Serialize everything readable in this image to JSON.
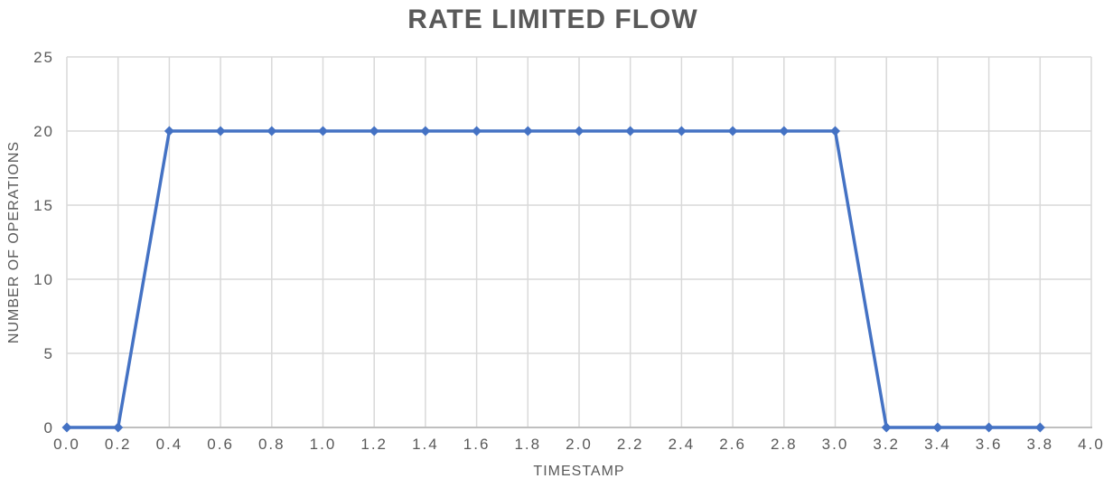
{
  "chart_data": {
    "type": "line",
    "title": "RATE LIMITED FLOW",
    "xlabel": "TIMESTAMP",
    "ylabel": "NUMBER OF OPERATIONS",
    "x": [
      0.0,
      0.2,
      0.4,
      0.6,
      0.8,
      1.0,
      1.2,
      1.4,
      1.6,
      1.8,
      2.0,
      2.2,
      2.4,
      2.6,
      2.8,
      3.0,
      3.2,
      3.4,
      3.6,
      3.8
    ],
    "series": [
      {
        "name": "operations",
        "values": [
          0,
          0,
          20,
          20,
          20,
          20,
          20,
          20,
          20,
          20,
          20,
          20,
          20,
          20,
          20,
          20,
          0,
          0,
          0,
          0
        ]
      }
    ],
    "xlim": [
      0.0,
      4.0
    ],
    "ylim": [
      0,
      25
    ],
    "x_tick_values": [
      0.0,
      0.2,
      0.4,
      0.6,
      0.8,
      1.0,
      1.2,
      1.4,
      1.6,
      1.8,
      2.0,
      2.2,
      2.4,
      2.6,
      2.8,
      3.0,
      3.2,
      3.4,
      3.6,
      3.8,
      4.0
    ],
    "x_tick_labels": [
      "0.0",
      "0.2",
      "0.4",
      "0.6",
      "0.8",
      "1.0",
      "1.2",
      "1.4",
      "1.6",
      "1.8",
      "2.0",
      "2.2",
      "2.4",
      "2.6",
      "2.8",
      "3.0",
      "3.2",
      "3.4",
      "3.6",
      "3.8",
      "4.0"
    ],
    "y_tick_values": [
      0,
      5,
      10,
      15,
      20,
      25
    ],
    "y_tick_labels": [
      "0",
      "5",
      "10",
      "15",
      "20",
      "25"
    ],
    "grid": "both",
    "legend": "none",
    "marker": "diamond",
    "colors": {
      "series": "#4472C4",
      "gridline": "#D9D9D9",
      "axis_line": "#BFBFBF",
      "tick_text": "#595959",
      "title_text": "#595959",
      "background": "#FFFFFF"
    }
  }
}
